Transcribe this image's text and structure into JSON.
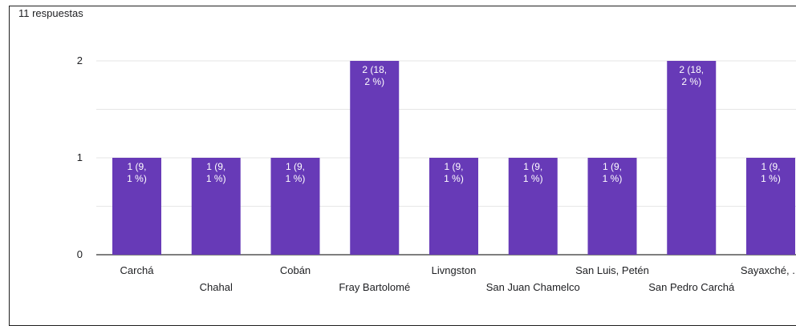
{
  "header": {
    "responses_label": "11 respuestas"
  },
  "chart_data": {
    "type": "bar",
    "categories": [
      "Carchá",
      "Chahal",
      "Cobán",
      "Fray Bartolomé",
      "Livngston",
      "San Juan Chamelco",
      "San Luis, Petén",
      "San Pedro Carchá",
      "Sayaxché, ..."
    ],
    "values": [
      1,
      1,
      1,
      2,
      1,
      1,
      1,
      2,
      1
    ],
    "data_labels": [
      [
        "1 (9,",
        "1 %)"
      ],
      [
        "1 (9,",
        "1 %)"
      ],
      [
        "1 (9,",
        "1 %)"
      ],
      [
        "2 (18,",
        "2 %)"
      ],
      [
        "1 (9,",
        "1 %)"
      ],
      [
        "1 (9,",
        "1 %)"
      ],
      [
        "1 (9,",
        "1 %)"
      ],
      [
        "2 (18,",
        "2 %)"
      ],
      [
        "1 (9,",
        "1 %)"
      ]
    ],
    "yticks": [
      "0",
      "1",
      "2"
    ],
    "ylim": [
      0,
      2
    ],
    "grid": true,
    "colors": {
      "bar": "#673ab7",
      "grid": "#e6e6e6",
      "axis": "#333333"
    }
  }
}
